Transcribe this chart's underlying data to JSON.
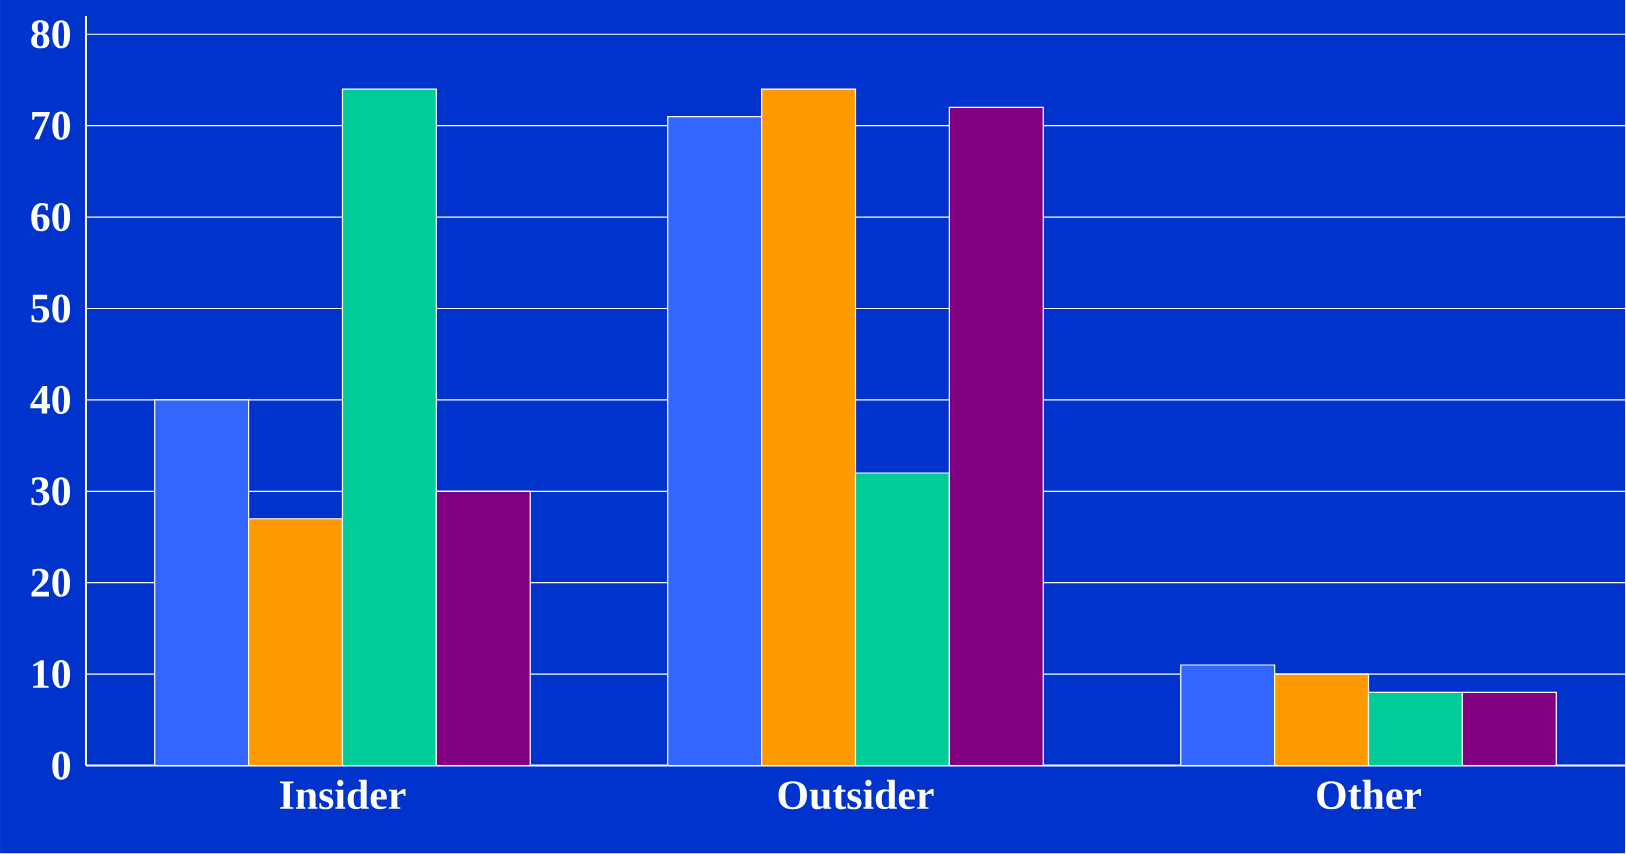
{
  "chart_data": {
    "type": "bar",
    "categories": [
      "Insider",
      "Outsider",
      "Other"
    ],
    "series": [
      {
        "color": "#3366ff",
        "values": [
          40,
          71,
          11
        ]
      },
      {
        "color": "#ff9900",
        "values": [
          27,
          74,
          10
        ]
      },
      {
        "color": "#00cc99",
        "values": [
          74,
          32,
          8
        ]
      },
      {
        "color": "#800080",
        "values": [
          30,
          72,
          8
        ]
      }
    ],
    "ylim": [
      0,
      82
    ],
    "yticks": [
      0,
      10,
      20,
      30,
      40,
      50,
      60,
      70,
      80
    ],
    "grid": "y"
  }
}
